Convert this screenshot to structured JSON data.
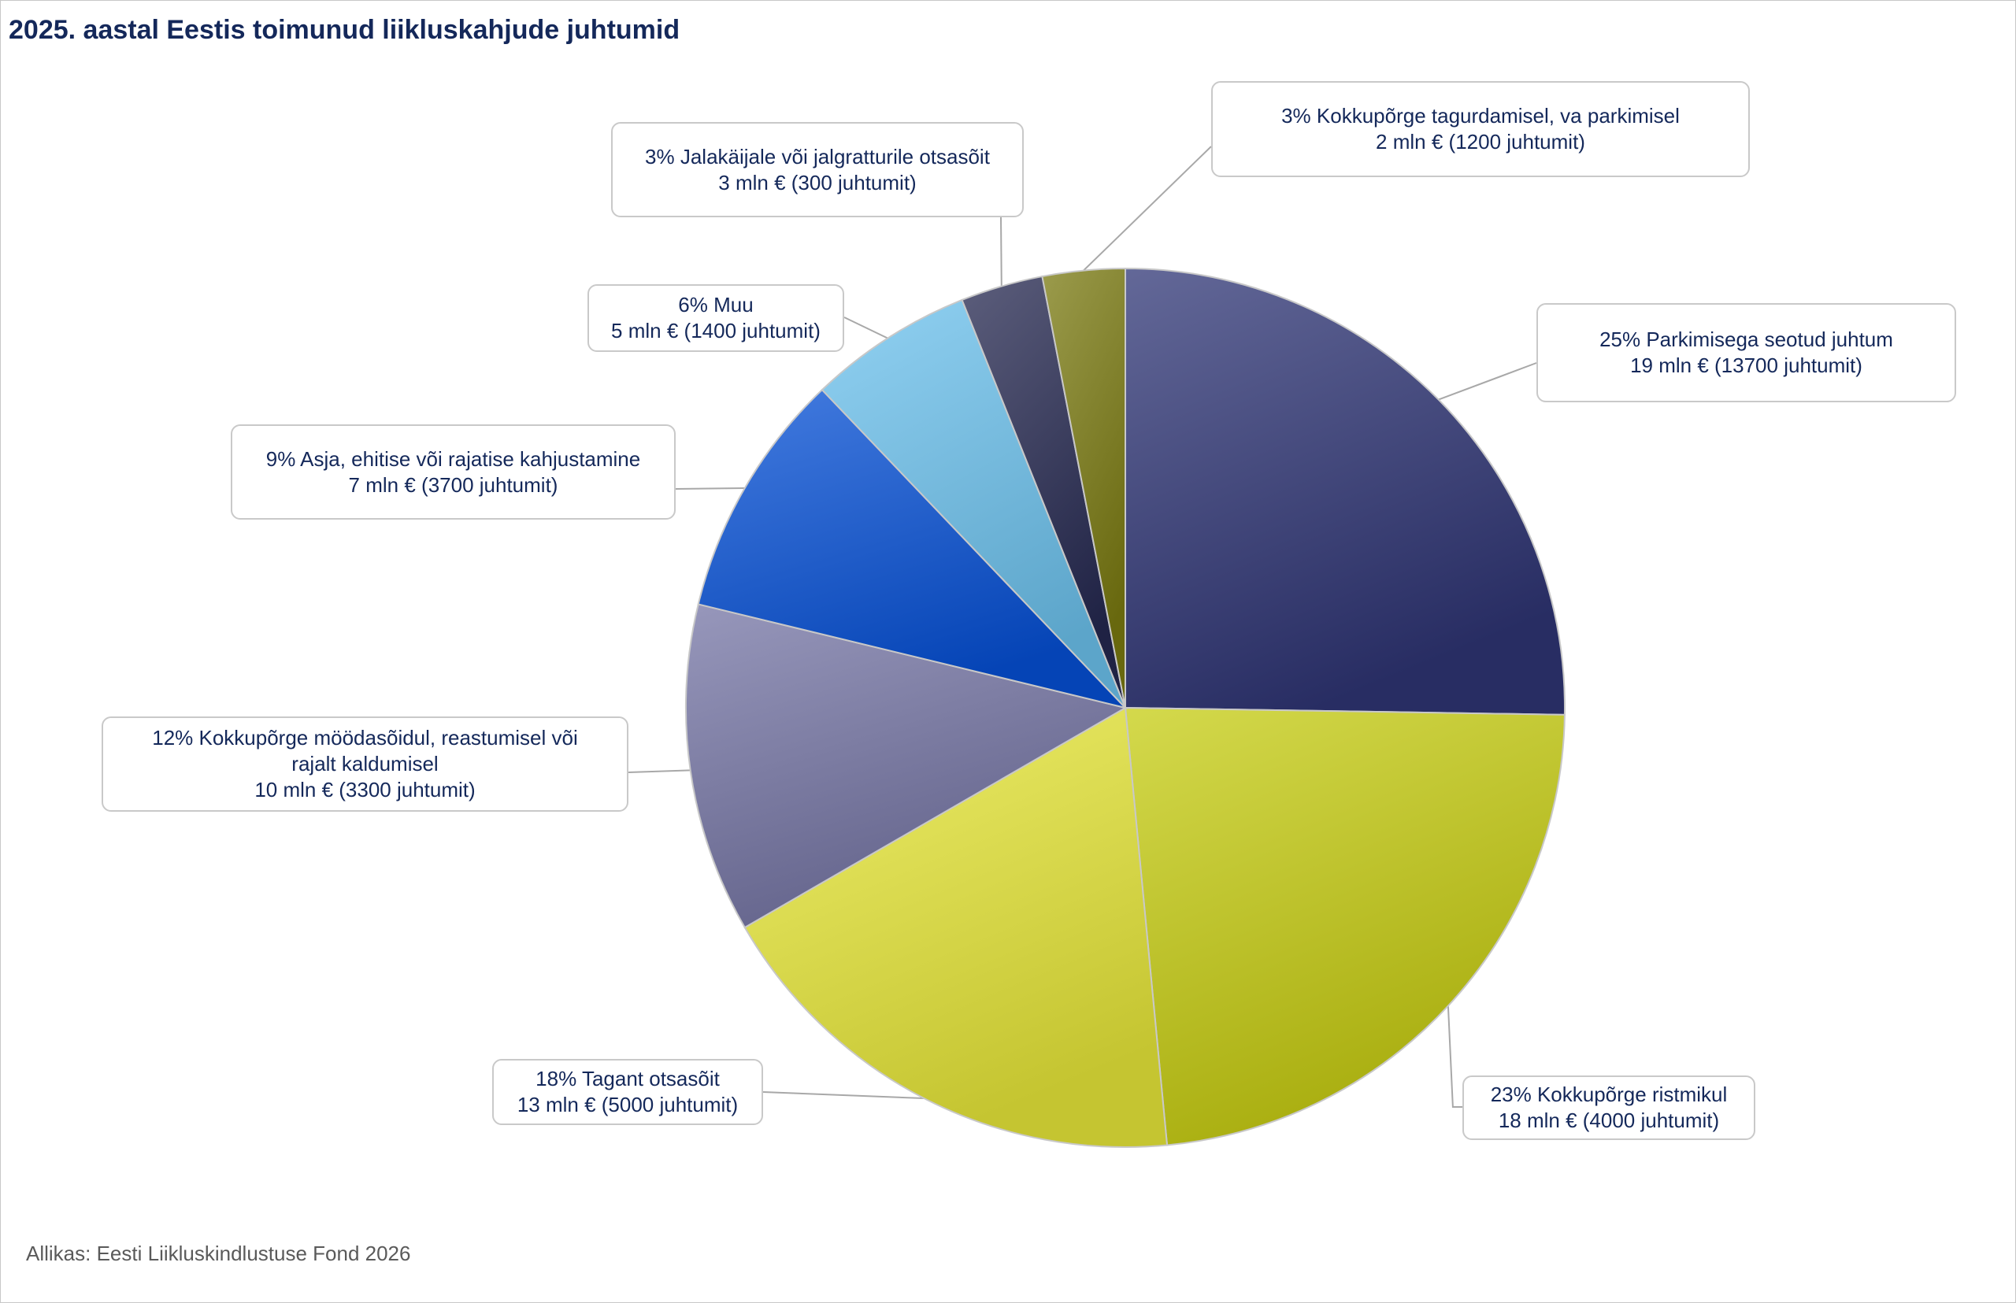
{
  "chart_data": {
    "type": "pie",
    "title": "2025. aastal Eestis toimunud liikluskahjude juhtumid",
    "source": "Allikas: Eesti Liikluskindlustuse Fond 2026",
    "start_angle": "12 o'clock",
    "direction": "clockwise",
    "slices": [
      {
        "percent": 25,
        "category": "Parkimisega seotud juhtum",
        "amount": "19 mln €",
        "cases": 13700,
        "label_text": "25% Parkimisega seotud juhtum",
        "value_text": "19 mln € (13700 juhtumit)",
        "color": "#2f3575"
      },
      {
        "percent": 23,
        "category": "Kokkupõrge ristmikul",
        "amount": "18 mln €",
        "cases": 4000,
        "label_text": "23% Kokkupõrge ristmikul",
        "value_text": "18 mln € (4000 juhtumit)",
        "color": "#c6cc10"
      },
      {
        "percent": 18,
        "category": "Tagant otsasõit",
        "amount": "13 mln €",
        "cases": 5000,
        "label_text": "18% Tagant otsasõit",
        "value_text": "13 mln € (5000 juhtumit)",
        "color": "#e8e83a"
      },
      {
        "percent": 12,
        "category": "Kokkupõrge möödasõidul, reastumisel või rajalt kaldumisel",
        "amount": "10 mln €",
        "cases": 3300,
        "label_lines": [
          "12% Kokkupõrge möödasõidul, reastumisel või",
          "rajalt kaldumisel"
        ],
        "value_text": "10 mln € (3300 juhtumit)",
        "color": "#7474a4"
      },
      {
        "percent": 9,
        "category": "Asja, ehitise või rajatise kahjustamine",
        "amount": "7 mln €",
        "cases": 3700,
        "label_text": "9% Asja, ehitise või rajatise kahjustamine",
        "value_text": "7 mln € (3700 juhtumit)",
        "color": "#0650d6"
      },
      {
        "percent": 6,
        "category": "Muu",
        "amount": "5 mln €",
        "cases": 1400,
        "label_text": "6% Muu",
        "value_text": "5 mln € (1400 juhtumit)",
        "color": "#6cc2ee"
      },
      {
        "percent": 3,
        "category": "Jalakäijale või jalgratturile otsasõit",
        "amount": "3 mln €",
        "cases": 300,
        "label_text": "3% Jalakäijale või jalgratturile otsasõit",
        "value_text": "3 mln € (300 juhtumit)",
        "color": "#252850"
      },
      {
        "percent": 3,
        "category": "Kokkupõrge tagurdamisel, va parkimisel",
        "amount": "2 mln €",
        "cases": 1200,
        "label_text": "3% Kokkupõrge tagurdamisel, va parkimisel",
        "value_text": "2 mln € (1200 juhtumit)",
        "color": "#7a7a10"
      }
    ]
  }
}
